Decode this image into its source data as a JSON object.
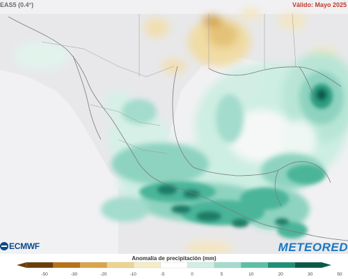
{
  "header": {
    "model_label": "EAS5 (0.4°)",
    "valid_label": "Válido: Mayo 2025"
  },
  "logos": {
    "ecmwf": "ECMWF",
    "meteored": "METEORED"
  },
  "legend": {
    "title": "Anomalía de precipitación (mm)",
    "ticks": [
      "-50",
      "-30",
      "-20",
      "-10",
      "-5",
      "0",
      "5",
      "10",
      "20",
      "30",
      "50"
    ],
    "colors": [
      "#6b3d08",
      "#b5731a",
      "#d8a54a",
      "#ecd48f",
      "#f6ecc6",
      "#ffffff",
      "#d2eee4",
      "#a3dccc",
      "#5cbfa6",
      "#1f8f75",
      "#0a5a47"
    ]
  },
  "map": {
    "palette": {
      "background": "#f3f3f4",
      "land": "#eaeaec",
      "coast": "#777777",
      "dry_light": "#f3e2b2",
      "dry_mid": "#e3c173",
      "wet_light": "#cdeee2",
      "wet_mid": "#8ed3bf",
      "wet_strong": "#4cb59a",
      "wet_dark": "#1b7c66"
    }
  }
}
